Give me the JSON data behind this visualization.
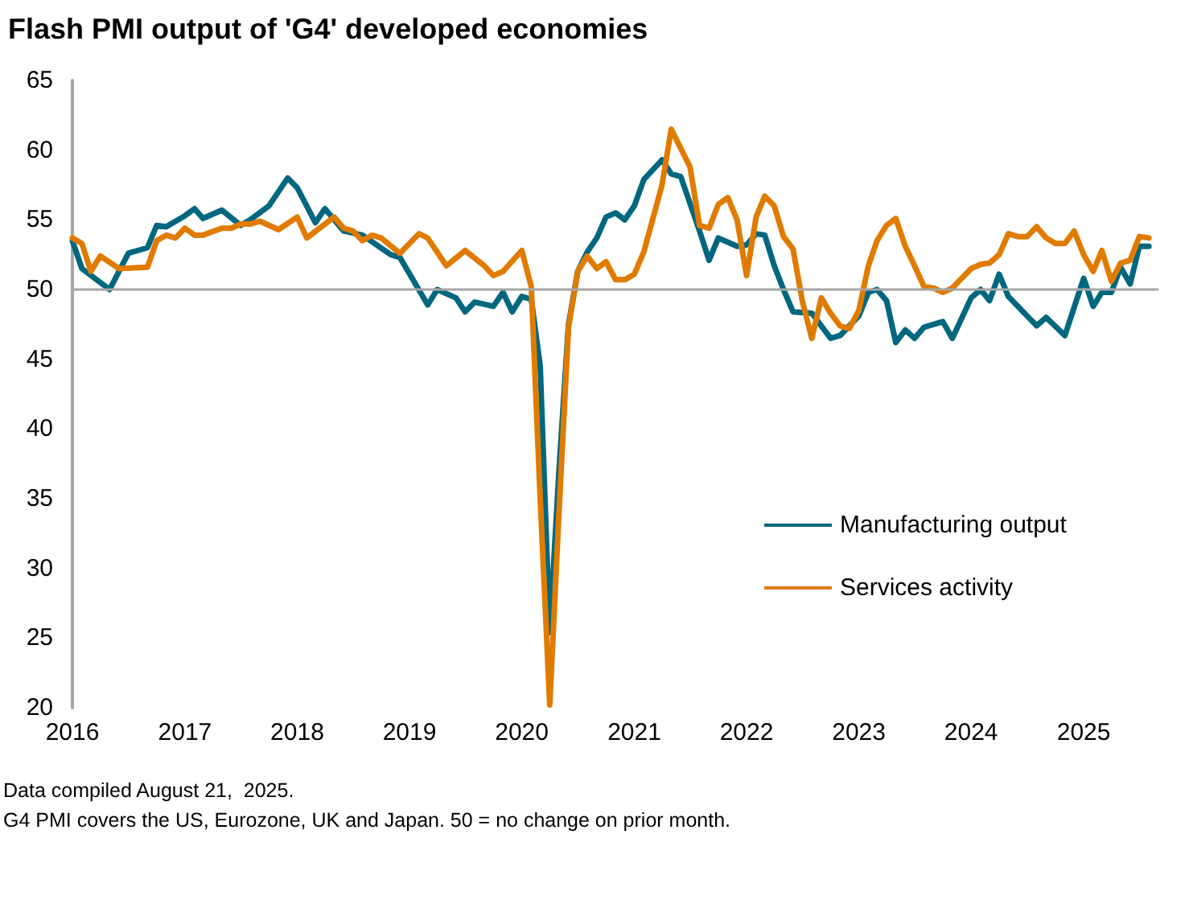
{
  "chart_data": {
    "type": "line",
    "title": "Flash PMI output of 'G4' developed economies",
    "xlim": [
      "2016-01",
      "2025-09"
    ],
    "xticks": [
      "2016",
      "2017",
      "2018",
      "2019",
      "2020",
      "2021",
      "2022",
      "2023",
      "2024",
      "2025"
    ],
    "ylim": [
      20,
      65
    ],
    "yticks": [
      20,
      25,
      30,
      35,
      40,
      45,
      50,
      55,
      60,
      65
    ],
    "grid": false,
    "legend": "right",
    "marker": "none",
    "line_style": "solid",
    "ref_lines": [
      {
        "axis": "y",
        "value": 50,
        "color": "#a6a6a6"
      }
    ],
    "annotations": [
      "Data compiled August 21,  2025.",
      "G4 PMI covers the US, Eurozone, UK and Japan. 50 = no change on prior month."
    ],
    "series": [
      {
        "name": "Manufacturing output",
        "color": "#00677f",
        "x": [
          "2016-01",
          "2016-02",
          "2016-05",
          "2016-07",
          "2016-09",
          "2016-10",
          "2016-11",
          "2017-01",
          "2017-02",
          "2017-03",
          "2017-05",
          "2017-07",
          "2017-08",
          "2017-10",
          "2017-12",
          "2018-01",
          "2018-03",
          "2018-04",
          "2018-06",
          "2018-08",
          "2018-11",
          "2018-12",
          "2019-03",
          "2019-04",
          "2019-06",
          "2019-07",
          "2019-08",
          "2019-10",
          "2019-11",
          "2019-12",
          "2020-01",
          "2020-02",
          "2020-03",
          "2020-04",
          "2020-05",
          "2020-06",
          "2020-07",
          "2020-08",
          "2020-09",
          "2020-10",
          "2020-11",
          "2020-12",
          "2021-01",
          "2021-02",
          "2021-04",
          "2021-05",
          "2021-06",
          "2021-08",
          "2021-09",
          "2021-10",
          "2021-12",
          "2022-01",
          "2022-02",
          "2022-03",
          "2022-04",
          "2022-05",
          "2022-06",
          "2022-08",
          "2022-10",
          "2022-11",
          "2023-01",
          "2023-02",
          "2023-03",
          "2023-04",
          "2023-05",
          "2023-06",
          "2023-07",
          "2023-08",
          "2023-10",
          "2023-11",
          "2024-01",
          "2024-02",
          "2024-03",
          "2024-04",
          "2024-05",
          "2024-08",
          "2024-09",
          "2024-11",
          "2025-01",
          "2025-02",
          "2025-03",
          "2025-04",
          "2025-05",
          "2025-06",
          "2025-07",
          "2025-08"
        ],
        "values": [
          53.5,
          51.5,
          50.0,
          52.6,
          53.0,
          54.6,
          54.5,
          55.3,
          55.8,
          55.1,
          55.7,
          54.6,
          55.0,
          56.0,
          58.0,
          57.3,
          54.8,
          55.8,
          54.2,
          53.9,
          52.5,
          52.3,
          48.9,
          50.0,
          49.4,
          48.4,
          49.1,
          48.8,
          49.8,
          48.4,
          49.5,
          49.3,
          44.5,
          25.4,
          37.0,
          47.5,
          51.3,
          52.7,
          53.7,
          55.2,
          55.5,
          55.0,
          56.0,
          57.9,
          59.3,
          58.3,
          58.1,
          54.2,
          52.1,
          53.7,
          53.1,
          53.2,
          54.0,
          53.9,
          51.7,
          50.0,
          48.4,
          48.3,
          46.5,
          46.7,
          48.1,
          49.8,
          50.0,
          49.2,
          46.2,
          47.1,
          46.5,
          47.3,
          47.7,
          46.5,
          49.4,
          50.0,
          49.2,
          51.1,
          49.5,
          47.4,
          48.0,
          46.7,
          50.8,
          48.8,
          49.8,
          49.8,
          51.6,
          50.4,
          53.1,
          53.1
        ]
      },
      {
        "name": "Services activity",
        "color": "#e07b00",
        "x": [
          "2016-01",
          "2016-02",
          "2016-03",
          "2016-04",
          "2016-06",
          "2016-09",
          "2016-10",
          "2016-11",
          "2016-12",
          "2017-01",
          "2017-02",
          "2017-03",
          "2017-05",
          "2017-06",
          "2017-07",
          "2017-08",
          "2017-09",
          "2017-11",
          "2018-01",
          "2018-02",
          "2018-05",
          "2018-06",
          "2018-07",
          "2018-08",
          "2018-09",
          "2018-10",
          "2018-12",
          "2019-02",
          "2019-03",
          "2019-05",
          "2019-07",
          "2019-09",
          "2019-10",
          "2019-11",
          "2020-01",
          "2020-02",
          "2020-03",
          "2020-04",
          "2020-05",
          "2020-06",
          "2020-07",
          "2020-08",
          "2020-09",
          "2020-10",
          "2020-11",
          "2020-12",
          "2021-01",
          "2021-02",
          "2021-04",
          "2021-05",
          "2021-07",
          "2021-08",
          "2021-09",
          "2021-10",
          "2021-11",
          "2021-12",
          "2022-01",
          "2022-02",
          "2022-03",
          "2022-04",
          "2022-05",
          "2022-06",
          "2022-07",
          "2022-08",
          "2022-09",
          "2022-10",
          "2022-11",
          "2022-12",
          "2023-01",
          "2023-02",
          "2023-03",
          "2023-04",
          "2023-05",
          "2023-06",
          "2023-07",
          "2023-08",
          "2023-09",
          "2023-10",
          "2023-11",
          "2023-12",
          "2024-01",
          "2024-02",
          "2024-03",
          "2024-04",
          "2024-05",
          "2024-06",
          "2024-07",
          "2024-08",
          "2024-09",
          "2024-10",
          "2024-11",
          "2024-12",
          "2025-01",
          "2025-02",
          "2025-03",
          "2025-04",
          "2025-05",
          "2025-06",
          "2025-07",
          "2025-08"
        ],
        "values": [
          53.7,
          53.3,
          51.3,
          52.4,
          51.5,
          51.6,
          53.5,
          53.9,
          53.7,
          54.4,
          53.9,
          53.9,
          54.4,
          54.4,
          54.7,
          54.7,
          54.9,
          54.3,
          55.2,
          53.7,
          55.2,
          54.4,
          54.2,
          53.5,
          53.9,
          53.7,
          52.6,
          54.0,
          53.7,
          51.7,
          52.8,
          51.7,
          51.0,
          51.3,
          52.8,
          50.2,
          35.0,
          20.2,
          34.0,
          47.3,
          51.3,
          52.4,
          51.5,
          52.0,
          50.7,
          50.7,
          51.1,
          52.7,
          57.5,
          61.5,
          58.8,
          54.6,
          54.4,
          56.1,
          56.6,
          55.0,
          51.0,
          55.2,
          56.7,
          56.0,
          53.8,
          52.9,
          49.2,
          46.5,
          49.4,
          48.3,
          47.4,
          47.2,
          48.5,
          51.7,
          53.5,
          54.6,
          55.1,
          53.1,
          51.7,
          50.2,
          50.1,
          49.8,
          50.1,
          50.8,
          51.5,
          51.8,
          51.9,
          52.5,
          54.0,
          53.8,
          53.8,
          54.5,
          53.7,
          53.3,
          53.3,
          54.2,
          52.5,
          51.3,
          52.8,
          50.6,
          51.9,
          52.1,
          53.8,
          53.7
        ]
      }
    ]
  }
}
